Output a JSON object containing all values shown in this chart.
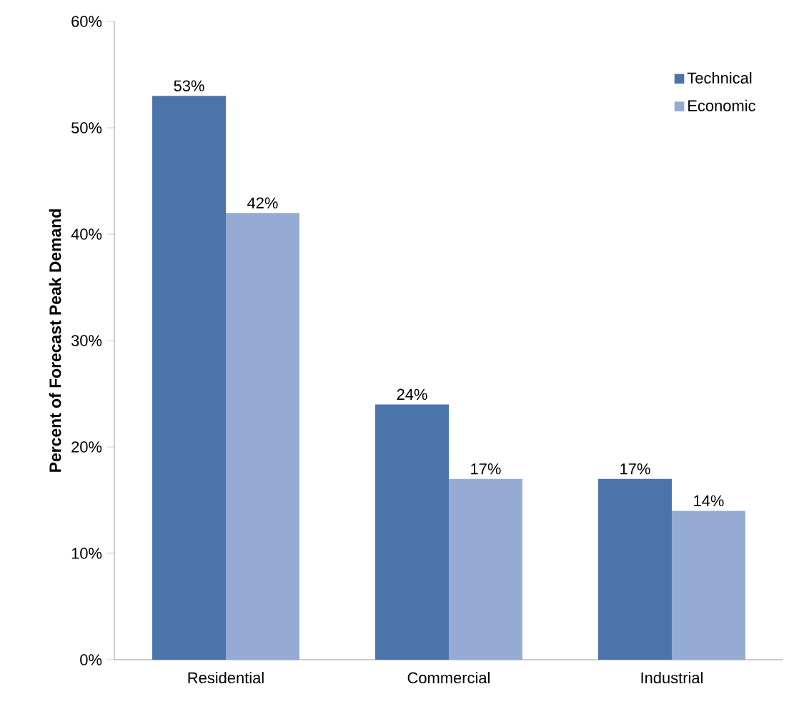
{
  "chart_data": {
    "type": "bar",
    "ylabel": "Percent of Forecast Peak Demand",
    "categories": [
      "Residential",
      "Commercial",
      "Industrial"
    ],
    "series": [
      {
        "name": "Technical",
        "color": "#4a74aa",
        "values": [
          53,
          24,
          17
        ],
        "value_labels": [
          "53%",
          "24%",
          "17%"
        ]
      },
      {
        "name": "Economic",
        "color": "#95abd3",
        "values": [
          42,
          17,
          14
        ],
        "value_labels": [
          "42%",
          "17%",
          "14%"
        ]
      }
    ],
    "ylim": [
      0,
      60
    ],
    "yticks": [
      {
        "value": 0,
        "label": "0%"
      },
      {
        "value": 10,
        "label": "10%"
      },
      {
        "value": 20,
        "label": "20%"
      },
      {
        "value": 30,
        "label": "30%"
      },
      {
        "value": 40,
        "label": "40%"
      },
      {
        "value": 50,
        "label": "50%"
      },
      {
        "value": 60,
        "label": "60%"
      }
    ],
    "grid": false,
    "legend": "top right"
  }
}
